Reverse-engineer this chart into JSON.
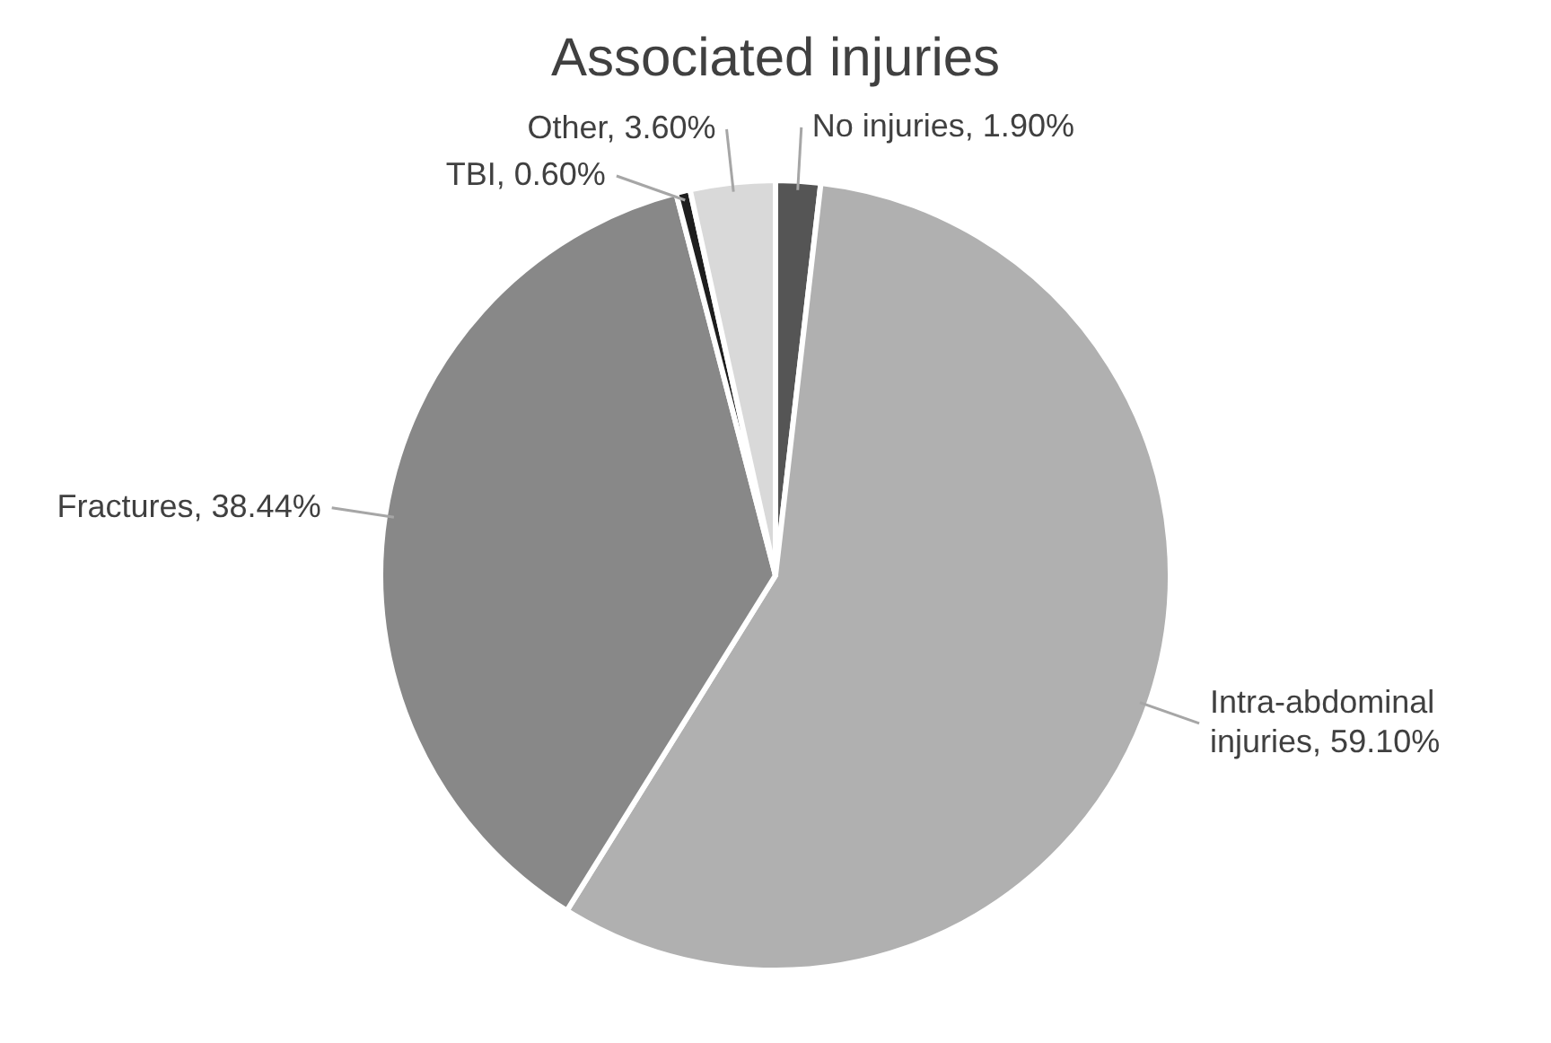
{
  "chart_data": {
    "type": "pie",
    "title": "Associated injuries",
    "categories": [
      "No injuries",
      "Intra-abdominal injuries",
      "Fractures",
      "TBI",
      "Other"
    ],
    "values": [
      1.9,
      59.1,
      38.44,
      0.6,
      3.6
    ],
    "value_labels": [
      "1.90%",
      "59.10%",
      "38.44%",
      "0.60%",
      "3.60%"
    ],
    "colors": [
      "#555555",
      "#b0b0b0",
      "#888888",
      "#1e1e1e",
      "#d9d9d9"
    ],
    "legend": false
  }
}
